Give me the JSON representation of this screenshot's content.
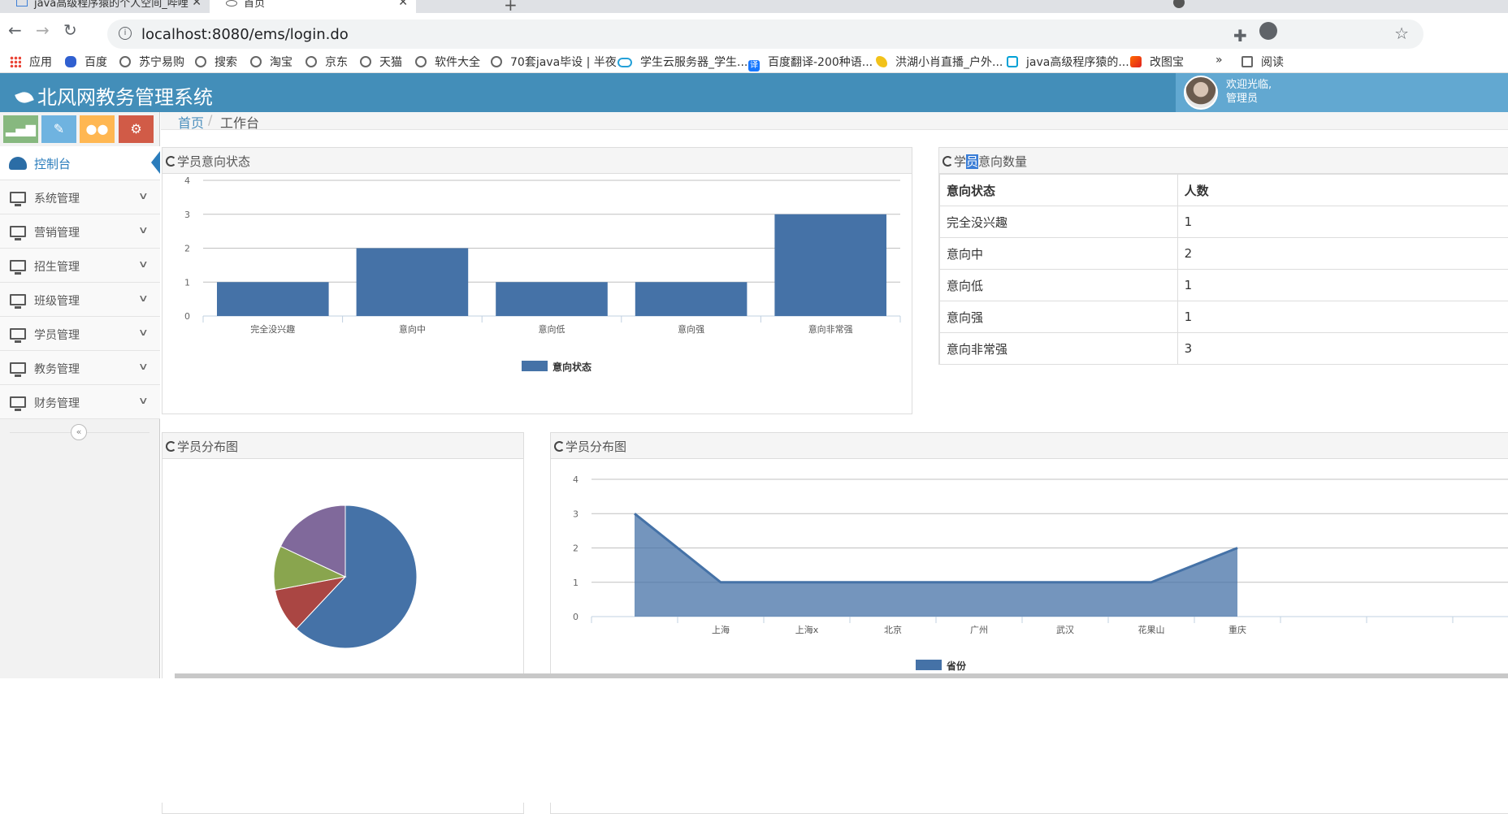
{
  "browser": {
    "tabs": [
      {
        "title": "java高级程序猿的个人空间_哔哩",
        "active": false
      },
      {
        "title": "首页",
        "active": true
      }
    ],
    "url": "localhost:8080/ems/login.do",
    "bookmarks": [
      {
        "label": "应用",
        "icon": "apps-grid-icon"
      },
      {
        "label": "百度",
        "icon": "baidu-paw-icon"
      },
      {
        "label": "苏宁易购",
        "icon": "globe-icon"
      },
      {
        "label": "搜索",
        "icon": "globe-icon"
      },
      {
        "label": "淘宝",
        "icon": "globe-icon"
      },
      {
        "label": "京东",
        "icon": "globe-icon"
      },
      {
        "label": "天猫",
        "icon": "globe-icon"
      },
      {
        "label": "软件大全",
        "icon": "globe-icon"
      },
      {
        "label": "70套java毕设 | 半夜",
        "icon": "globe-icon"
      },
      {
        "label": "学生云服务器_学生...",
        "icon": "cloud-icon"
      },
      {
        "label": "百度翻译-200种语...",
        "icon": "translate-icon"
      },
      {
        "label": "洪湖小肖直播_户外...",
        "icon": "bird-icon"
      },
      {
        "label": "java高级程序猿的...",
        "icon": "bilibili-icon"
      },
      {
        "label": "改图宝",
        "icon": "gaitubao-icon"
      },
      {
        "label": "阅读",
        "icon": "reading-list-icon"
      }
    ],
    "more": "»"
  },
  "header": {
    "brand": "北风网教务管理系统",
    "welcome_line1": "欢迎光临,",
    "welcome_line2": "管理员"
  },
  "sidebar": {
    "shortcut_colors": [
      "#87b87f",
      "#6fb3e0",
      "#ffb752",
      "#d15b47"
    ],
    "items": [
      {
        "label": "控制台",
        "active": true
      },
      {
        "label": "系统管理"
      },
      {
        "label": "营销管理"
      },
      {
        "label": "招生管理"
      },
      {
        "label": "班级管理"
      },
      {
        "label": "学员管理"
      },
      {
        "label": "教务管理"
      },
      {
        "label": "财务管理"
      }
    ],
    "collapse_glyph": "«"
  },
  "breadcrumb": {
    "home": "首页",
    "sep": "/",
    "current": "工作台"
  },
  "widgets": {
    "bar_title": "学员意向状态",
    "table_title_parts": [
      "学",
      "员",
      "意向数量"
    ],
    "pie_title": "学员分布图",
    "area_title": "学员分布图"
  },
  "count_table": {
    "headers": [
      "意向状态",
      "人数"
    ],
    "rows": [
      [
        "完全没兴趣",
        "1"
      ],
      [
        "意向中",
        "2"
      ],
      [
        "意向低",
        "1"
      ],
      [
        "意向强",
        "1"
      ],
      [
        "意向非常强",
        "3"
      ]
    ]
  },
  "chart_data": [
    {
      "type": "bar",
      "categories": [
        "完全没兴趣",
        "意向中",
        "意向低",
        "意向强",
        "意向非常强"
      ],
      "series": [
        {
          "name": "意向状态",
          "values": [
            1,
            2,
            1,
            1,
            3
          ],
          "color": "#4572a7"
        }
      ],
      "ylim": [
        0,
        4
      ],
      "yticks": [
        0,
        1,
        2,
        3,
        4
      ],
      "grid": true,
      "legend": "bottom-center"
    },
    {
      "type": "pie",
      "slices": [
        {
          "value": 0.62,
          "color": "#4572a7"
        },
        {
          "value": 0.1,
          "color": "#aa4643"
        },
        {
          "value": 0.1,
          "color": "#89a54e"
        },
        {
          "value": 0.18,
          "color": "#80699b"
        }
      ]
    },
    {
      "type": "area",
      "categories": [
        "",
        "上海",
        "上海x",
        "北京",
        "广州",
        "武汉",
        "花果山",
        "重庆"
      ],
      "series": [
        {
          "name": "省份",
          "values": [
            3,
            1,
            1,
            1,
            1,
            1,
            1,
            2
          ],
          "color": "#4572a7"
        }
      ],
      "ylim": [
        0,
        4
      ],
      "yticks": [
        0,
        1,
        2,
        3,
        4
      ],
      "grid": true,
      "legend": "bottom-center"
    }
  ]
}
